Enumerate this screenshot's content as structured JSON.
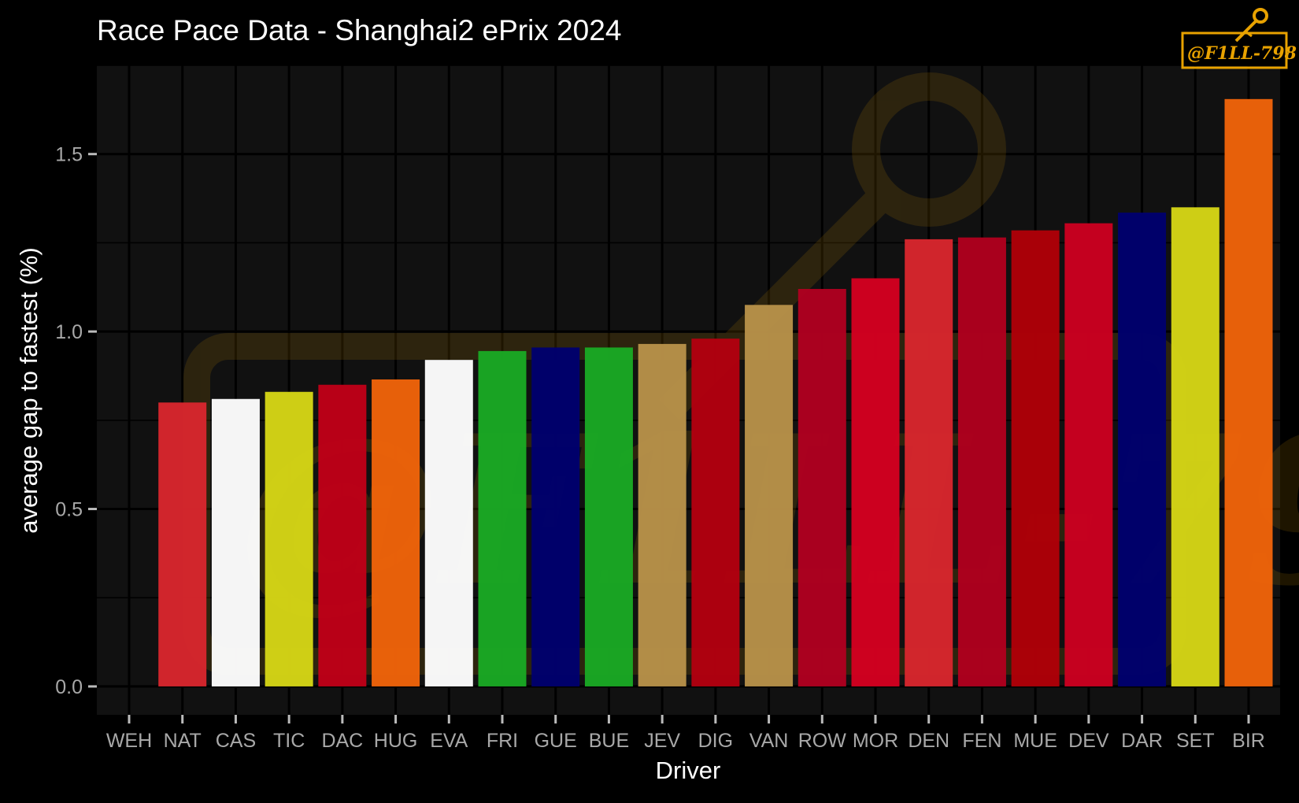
{
  "chart_data": {
    "type": "bar",
    "title": "Race Pace Data - Shanghai2 ePrix 2024",
    "xlabel": "Driver",
    "ylabel": "average gap to fastest (%)",
    "ylim": [
      -0.08,
      1.75
    ],
    "yticks": [
      0.0,
      0.5,
      1.0,
      1.5
    ],
    "ytick_labels": [
      "0.0",
      "0.5",
      "1.0",
      "1.5"
    ],
    "grid": true,
    "legend": "none",
    "categories": [
      "WEH",
      "NAT",
      "CAS",
      "TIC",
      "DAC",
      "HUG",
      "EVA",
      "FRI",
      "GUE",
      "BUE",
      "JEV",
      "DIG",
      "VAN",
      "ROW",
      "MOR",
      "DEN",
      "FEN",
      "MUE",
      "DEV",
      "DAR",
      "SET",
      "BIR"
    ],
    "values": [
      0.0,
      0.8,
      0.81,
      0.83,
      0.85,
      0.865,
      0.92,
      0.945,
      0.955,
      0.955,
      0.965,
      0.98,
      1.075,
      1.12,
      1.15,
      1.26,
      1.265,
      1.285,
      1.305,
      1.335,
      1.35,
      1.655
    ],
    "colors": [
      "#000000",
      "#d9262e",
      "#ffffff",
      "#d6d616",
      "#c00018",
      "#f0640a",
      "#ffffff",
      "#1aaa24",
      "#00006e",
      "#1aaa24",
      "#b8924a",
      "#b30010",
      "#b8924a",
      "#b00020",
      "#d40020",
      "#d9262e",
      "#b0001e",
      "#b00008",
      "#cc0020",
      "#00006e",
      "#d6d616",
      "#f0640a"
    ]
  },
  "watermark": {
    "label": "@F1LL-798"
  },
  "colors": {
    "background": "#000000",
    "panel": "#111111",
    "grid": "#000000",
    "watermark": "#e8a200"
  }
}
